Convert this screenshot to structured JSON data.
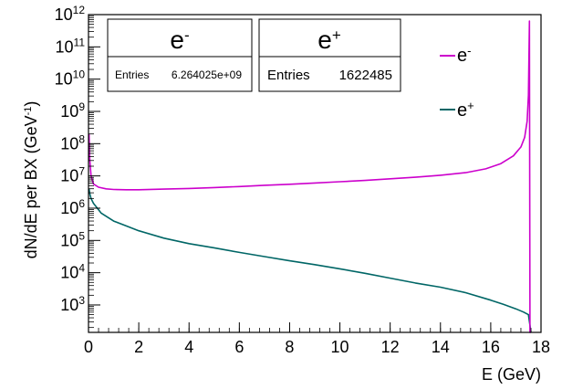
{
  "chart_data": {
    "type": "line",
    "xlabel": "E (GeV)",
    "ylabel": "dN/dE per BX (GeV",
    "ylabel_sup": "-1",
    "ylabel_close": ")",
    "xlim": [
      0,
      18
    ],
    "ylim_log10": [
      2.15,
      12
    ],
    "log_y": true,
    "grid": false,
    "legend_position": "top-right",
    "x_ticks": [
      0,
      2,
      4,
      6,
      8,
      10,
      12,
      14,
      16,
      18
    ],
    "y_tick_exponents": [
      3,
      4,
      5,
      6,
      7,
      8,
      9,
      10,
      11,
      12
    ],
    "y_tick_base": "10",
    "colors": {
      "electron": "#cc00cc",
      "positron": "#006666"
    },
    "series": [
      {
        "name": "e",
        "name_sup": "-",
        "color": "#cc00cc",
        "x": [
          0.02,
          0.05,
          0.1,
          0.2,
          0.4,
          0.7,
          1.0,
          1.5,
          2,
          3,
          4,
          5,
          6,
          7,
          8,
          9,
          10,
          11,
          12,
          13,
          14,
          15,
          15.8,
          16.4,
          16.9,
          17.2,
          17.35,
          17.45,
          17.5,
          17.54,
          17.56,
          17.58,
          17.6
        ],
        "log10_y": [
          8.3,
          7.5,
          7.0,
          6.75,
          6.65,
          6.6,
          6.58,
          6.57,
          6.57,
          6.59,
          6.61,
          6.64,
          6.67,
          6.71,
          6.74,
          6.78,
          6.82,
          6.86,
          6.91,
          6.96,
          7.02,
          7.1,
          7.22,
          7.38,
          7.62,
          7.9,
          8.2,
          8.7,
          9.5,
          11.8,
          2.15,
          2.15,
          2.15
        ]
      },
      {
        "name": "e",
        "name_sup": "+",
        "color": "#006666",
        "x": [
          0.02,
          0.05,
          0.1,
          0.2,
          0.3,
          0.5,
          0.7,
          1.0,
          1.5,
          2,
          3,
          4,
          5,
          6,
          7,
          8,
          9,
          10,
          11,
          12,
          13,
          14,
          15,
          16,
          16.5,
          17,
          17.3,
          17.5,
          17.6
        ],
        "log10_y": [
          6.6,
          6.45,
          6.3,
          6.15,
          6.05,
          5.85,
          5.75,
          5.6,
          5.45,
          5.3,
          5.07,
          4.9,
          4.77,
          4.63,
          4.5,
          4.37,
          4.25,
          4.12,
          3.98,
          3.83,
          3.68,
          3.55,
          3.38,
          3.15,
          3.02,
          2.88,
          2.78,
          2.7,
          2.15
        ]
      }
    ],
    "stat_boxes": [
      {
        "title": "e",
        "title_sup": "-",
        "entries_label": "Entries",
        "entries_value": "6.264025e+09"
      },
      {
        "title": "e",
        "title_sup": "+",
        "entries_label": "Entries",
        "entries_value": "1622485"
      }
    ]
  }
}
